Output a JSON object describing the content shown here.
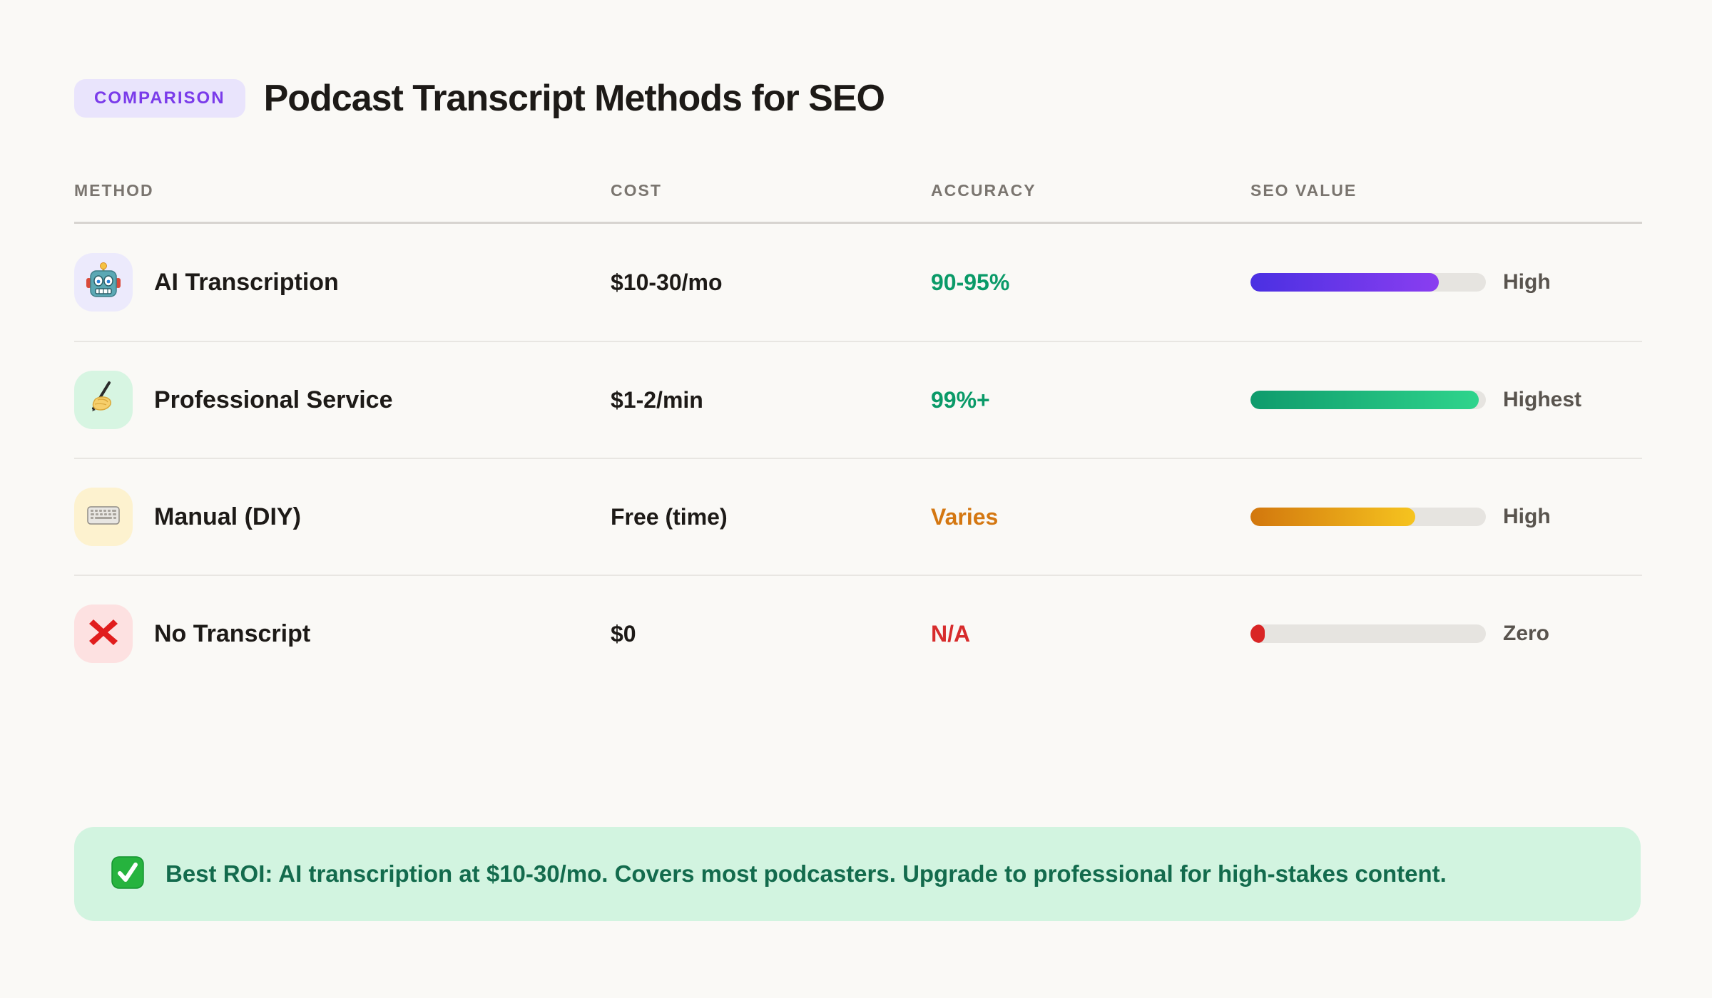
{
  "page": {
    "background": "#faf9f6"
  },
  "header": {
    "badge_label": "COMPARISON",
    "badge_text_color": "#7a3bea",
    "badge_bg_color": "#e9e4fc",
    "title": "Podcast Transcript Methods for SEO"
  },
  "table": {
    "columns": [
      "METHOD",
      "COST",
      "ACCURACY",
      "SEO VALUE"
    ],
    "rows": [
      {
        "method": "AI Transcription",
        "icon": "robot-icon",
        "icon_bg": "#eceafc",
        "cost": "$10-30/mo",
        "accuracy": "90-95%",
        "accuracy_color": "#0a9a68",
        "seo_percent": 80,
        "bar_from": "#4a30e2",
        "bar_to": "#8a3ef0",
        "seo_label": "High"
      },
      {
        "method": "Professional Service",
        "icon": "writing-hand-icon",
        "icon_bg": "#d7f5e2",
        "cost": "$1-2/min",
        "accuracy": "99%+",
        "accuracy_color": "#0a9a68",
        "seo_percent": 97,
        "bar_from": "#0f9b6c",
        "bar_to": "#2fd48c",
        "seo_label": "Highest"
      },
      {
        "method": "Manual (DIY)",
        "icon": "keyboard-icon",
        "icon_bg": "#fdf2cf",
        "cost": "Free (time)",
        "accuracy": "Varies",
        "accuracy_color": "#d47711",
        "seo_percent": 70,
        "bar_from": "#d2770d",
        "bar_to": "#f6c41f",
        "seo_label": "High"
      },
      {
        "method": "No Transcript",
        "icon": "cross-mark-icon",
        "icon_bg": "#fde1e1",
        "cost": "$0",
        "accuracy": "N/A",
        "accuracy_color": "#d72c2c",
        "seo_percent": 6,
        "bar_from": "#d92525",
        "bar_to": "#d92525",
        "seo_label": "Zero"
      }
    ]
  },
  "callout": {
    "icon": "check-mark-icon",
    "bg_color": "#d2f4e0",
    "text_color": "#136b4d",
    "text": "Best ROI: AI transcription at $10-30/mo. Covers most podcasters. Upgrade to professional for high-stakes content."
  },
  "chart_data": {
    "type": "table",
    "title": "Podcast Transcript Methods for SEO",
    "columns": [
      "METHOD",
      "COST",
      "ACCURACY",
      "SEO VALUE"
    ],
    "rows": [
      [
        "AI Transcription",
        "$10-30/mo",
        "90-95%",
        "High"
      ],
      [
        "Professional Service",
        "$1-2/min",
        "99%+",
        "Highest"
      ],
      [
        "Manual (DIY)",
        "Free (time)",
        "Varies",
        "High"
      ],
      [
        "No Transcript",
        "$0",
        "N/A",
        "Zero"
      ]
    ],
    "seo_value_bar_percents": [
      80,
      97,
      70,
      6
    ],
    "annotations": [
      "Best ROI: AI transcription at $10-30/mo. Covers most podcasters. Upgrade to professional for high-stakes content."
    ]
  }
}
